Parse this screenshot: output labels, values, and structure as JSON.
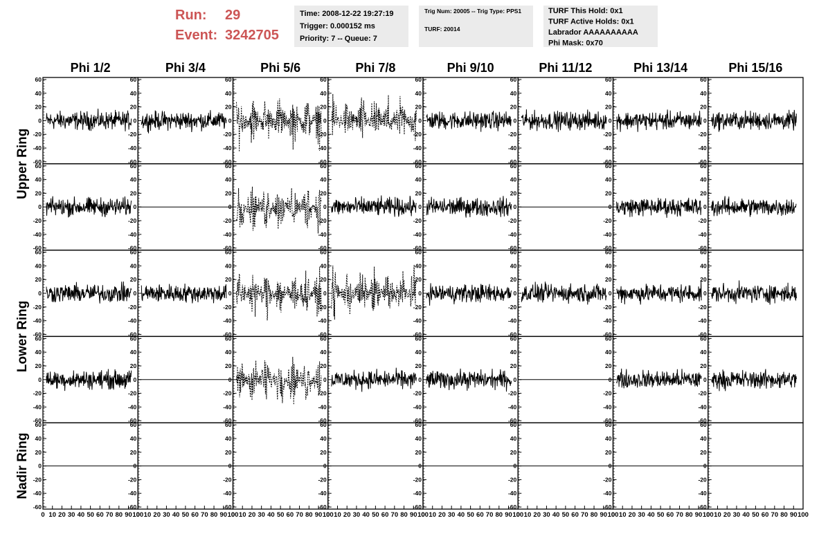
{
  "header": {
    "run_label": "Run:",
    "run": "29",
    "event_label": "Event:",
    "event": "3242705",
    "info": [
      [
        "Time: 2008-12-22 19:27:19",
        "Trigger: 0.000152 ms",
        "Priority: 7 -- Queue: 7"
      ],
      [
        "Trig Num: 20005 -- Trig Type: PPS1",
        "TURF: 20014"
      ],
      [
        "TURF This Hold: 0x1",
        "TURF Active Holds: 0x1",
        "Labrador AAAAAAAAAA",
        "Phi Mask: 0x70"
      ]
    ]
  },
  "columns": [
    "Phi 1/2",
    "Phi 3/4",
    "Phi 5/6",
    "Phi 7/8",
    "Phi 9/10",
    "Phi 11/12",
    "Phi 13/14",
    "Phi 15/16"
  ],
  "rings": [
    "Upper Ring",
    "Lower Ring",
    "Nadir Ring"
  ],
  "ylim": [
    -63,
    63
  ],
  "yticks": [
    60,
    40,
    20,
    0,
    -20,
    -40,
    -60
  ],
  "xlim": [
    0,
    100
  ],
  "xticks": [
    0,
    10,
    20,
    30,
    40,
    50,
    60,
    70,
    80,
    90,
    100
  ]
}
